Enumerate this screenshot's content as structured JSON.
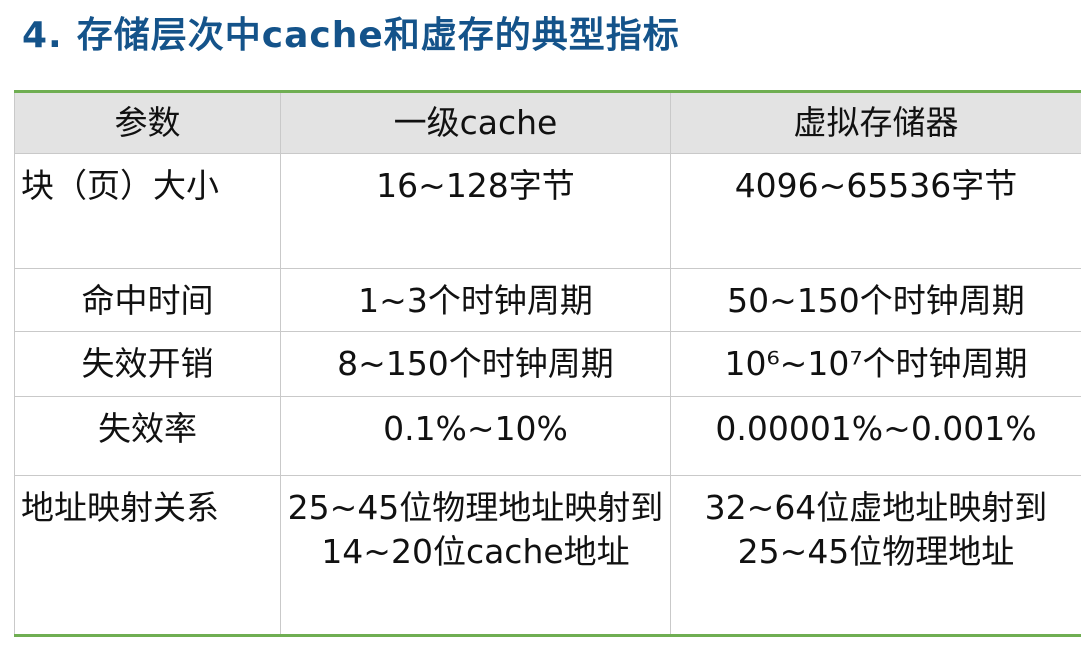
{
  "title": {
    "number": "4.",
    "text": "存储层次中cache和虚存的典型指标"
  },
  "table": {
    "headers": [
      "参数",
      "一级cache",
      "虚拟存储器"
    ],
    "rows": [
      {
        "param": "块（页）大小",
        "cache": "16~128字节",
        "vm": "4096~65536字节"
      },
      {
        "param": "命中时间",
        "cache": "1~3个时钟周期",
        "vm": "50~150个时钟周期"
      },
      {
        "param": "失效开销",
        "cache": "8~150个时钟周期",
        "vm": "10⁶~10⁷个时钟周期"
      },
      {
        "param": "失效率",
        "cache": "0.1%~10%",
        "vm": "0.00001%~0.001%"
      },
      {
        "param": "地址映射关系",
        "cache": "25~45位物理地址映射到14~20位cache地址",
        "vm": "32~64位虚地址映射到25~45位物理地址"
      }
    ]
  },
  "colors": {
    "title": "#14538a",
    "header_bg": "#e3e3e3",
    "rule": "#6fae52",
    "grid": "#c9c9c9"
  }
}
